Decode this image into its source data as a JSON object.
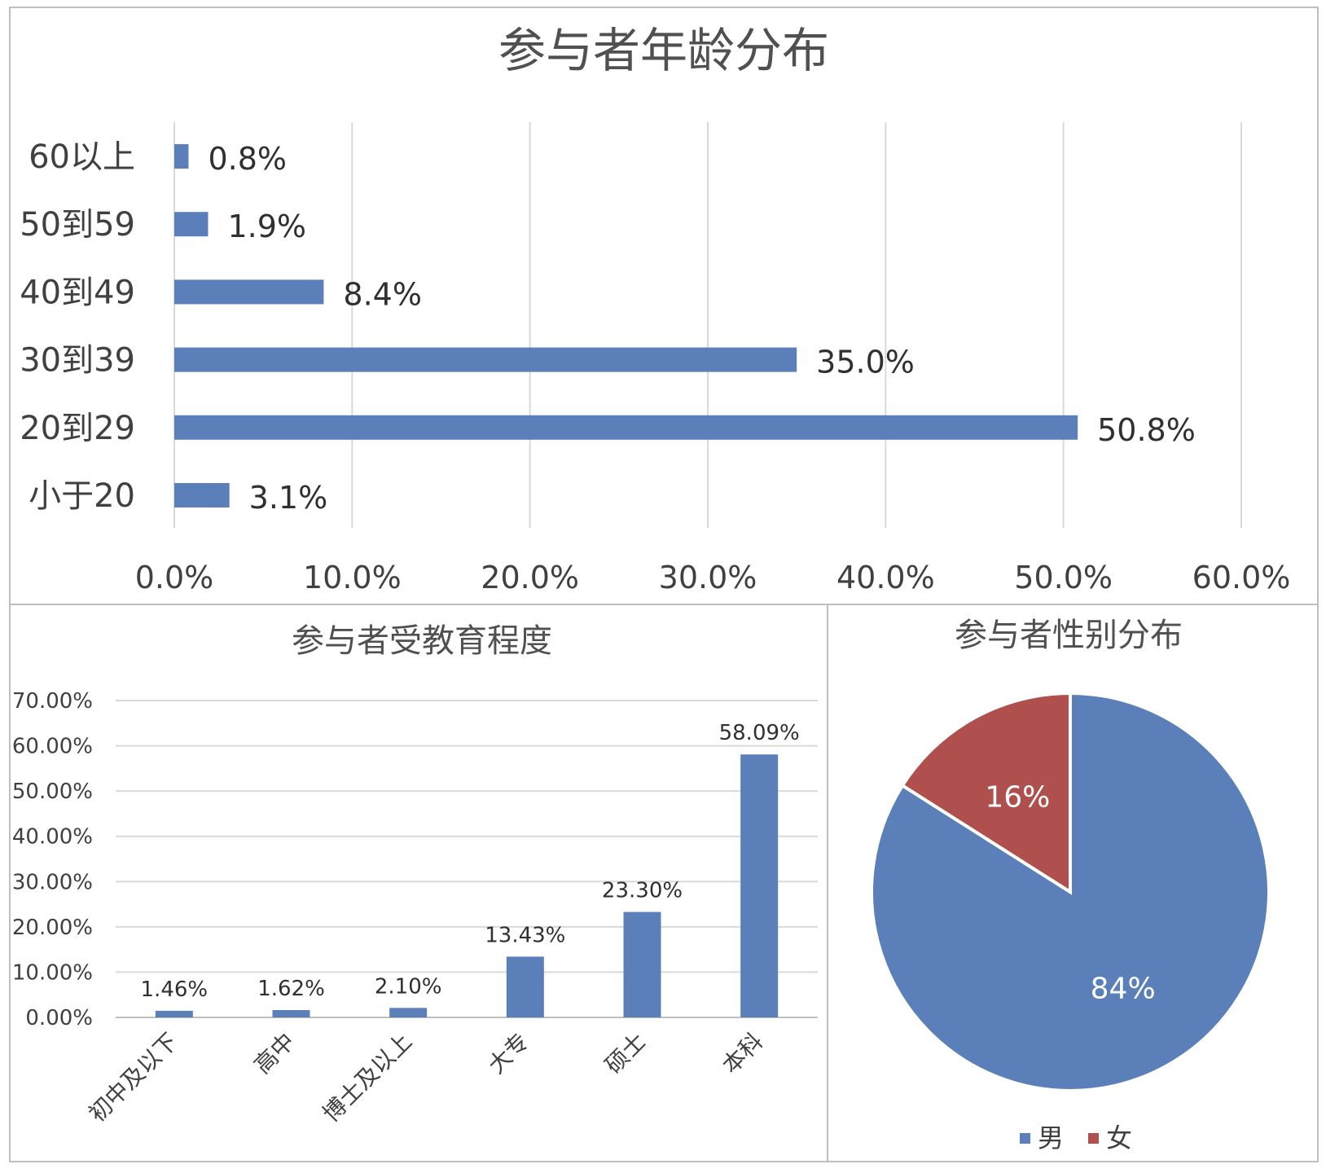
{
  "chart_data": [
    {
      "type": "bar",
      "orientation": "horizontal",
      "title": "参与者年龄分布",
      "categories": [
        "60以上",
        "50到59",
        "40到49",
        "30到39",
        "20到29",
        "小于20"
      ],
      "values": [
        0.8,
        1.9,
        8.4,
        35.0,
        50.8,
        3.1
      ],
      "value_labels": [
        "0.8%",
        "1.9%",
        "8.4%",
        "35.0%",
        "50.8%",
        "3.1%"
      ],
      "xlim": [
        0,
        60
      ],
      "x_ticks": [
        "0.0%",
        "10.0%",
        "20.0%",
        "30.0%",
        "40.0%",
        "50.0%",
        "60.0%"
      ],
      "grid": true,
      "color": "#5b80b9"
    },
    {
      "type": "bar",
      "orientation": "vertical",
      "title": "参与者受教育程度",
      "categories": [
        "初中及以下",
        "高中",
        "博士及以上",
        "大专",
        "硕士",
        "本科"
      ],
      "values": [
        1.46,
        1.62,
        2.1,
        13.43,
        23.3,
        58.09
      ],
      "value_labels": [
        "1.46%",
        "1.62%",
        "2.10%",
        "13.43%",
        "23.30%",
        "58.09%"
      ],
      "ylim": [
        0,
        70
      ],
      "y_ticks": [
        "0.00%",
        "10.00%",
        "20.00%",
        "30.00%",
        "40.00%",
        "50.00%",
        "60.00%",
        "70.00%"
      ],
      "grid": true,
      "color": "#5b80b9"
    },
    {
      "type": "pie",
      "title": "参与者性别分布",
      "slices": [
        {
          "label": "男",
          "value": 84,
          "value_label": "84%",
          "color": "#5b80b9"
        },
        {
          "label": "女",
          "value": 16,
          "value_label": "16%",
          "color": "#b0504e"
        }
      ],
      "legend": "bottom"
    }
  ]
}
